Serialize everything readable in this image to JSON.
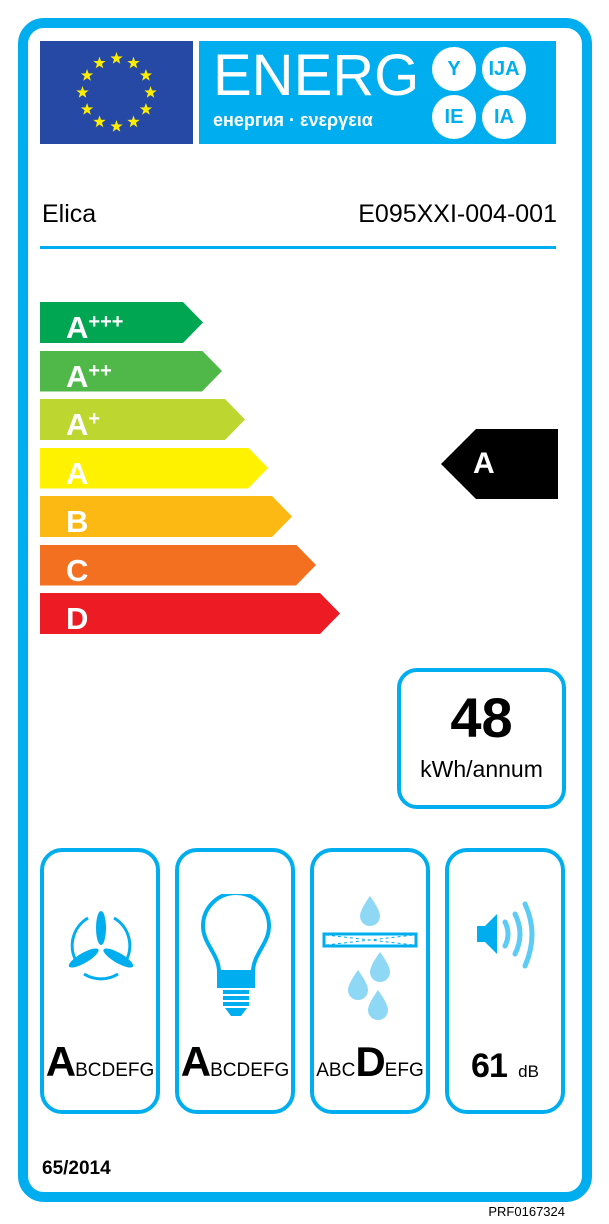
{
  "header": {
    "energ": "ENERG",
    "languages": "енергия · ενεργεια",
    "suffixes": [
      "Y",
      "IJA",
      "IE",
      "IA"
    ]
  },
  "supplier": "Elica",
  "model": "E095XXI-004-001",
  "scale": [
    {
      "base": "A",
      "plus": "+++",
      "color": "#00a651"
    },
    {
      "base": "A",
      "plus": "++",
      "color": "#50b848"
    },
    {
      "base": "A",
      "plus": "+",
      "color": "#bed630"
    },
    {
      "base": "A",
      "plus": "",
      "color": "#fff200"
    },
    {
      "base": "B",
      "plus": "",
      "color": "#fdb913"
    },
    {
      "base": "C",
      "plus": "",
      "color": "#f37021"
    },
    {
      "base": "D",
      "plus": "",
      "color": "#ed1c24"
    }
  ],
  "rating": "A",
  "consumption": {
    "value": "48",
    "unit": "kWh/annum"
  },
  "features": [
    {
      "icon": "fan-icon",
      "pre": "",
      "cls": "A",
      "post": "BCDEFG"
    },
    {
      "icon": "light-bulb-icon",
      "pre": "",
      "cls": "A",
      "post": "BCDEFG"
    },
    {
      "icon": "grease-filter-icon",
      "pre": "ABC",
      "cls": "D",
      "post": "EFG"
    }
  ],
  "noise": {
    "value": "61",
    "unit": "dB"
  },
  "regulation": "65/2014",
  "label_code": "PRF0167324",
  "colors": {
    "border": "#00aeef",
    "flag": "#2549a4",
    "star": "#ffed00"
  }
}
